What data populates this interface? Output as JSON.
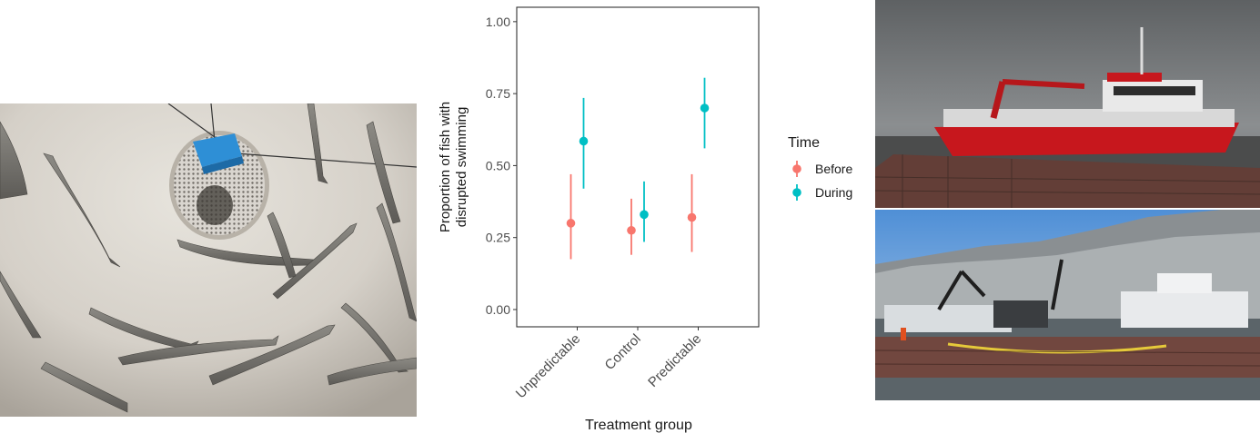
{
  "chart_data": {
    "type": "pointrange",
    "title": "",
    "xlabel": "Treatment group",
    "ylabel_lines": [
      "Proportion of fish with",
      "disrupted swimming"
    ],
    "ylim": [
      0,
      1
    ],
    "yticks": [
      "0.00",
      "0.25",
      "0.50",
      "0.75",
      "1.00"
    ],
    "categories": [
      "Unpredictable",
      "Control",
      "Predictable"
    ],
    "legend": {
      "title": "Time",
      "position": "right"
    },
    "series": [
      {
        "name": "Before",
        "color": "#F8766D",
        "values": [
          0.3,
          0.275,
          0.32
        ],
        "lower": [
          0.175,
          0.19,
          0.2
        ],
        "upper": [
          0.47,
          0.385,
          0.47
        ]
      },
      {
        "name": "During",
        "color": "#00BFC4",
        "values": [
          0.585,
          0.33,
          0.7
        ],
        "lower": [
          0.42,
          0.235,
          0.56
        ],
        "upper": [
          0.735,
          0.445,
          0.805
        ]
      }
    ]
  },
  "photos": {
    "left": "salmon-tank-photo",
    "top_right": "red-boat-photo",
    "bottom_right": "fjord-vessels-photo"
  }
}
